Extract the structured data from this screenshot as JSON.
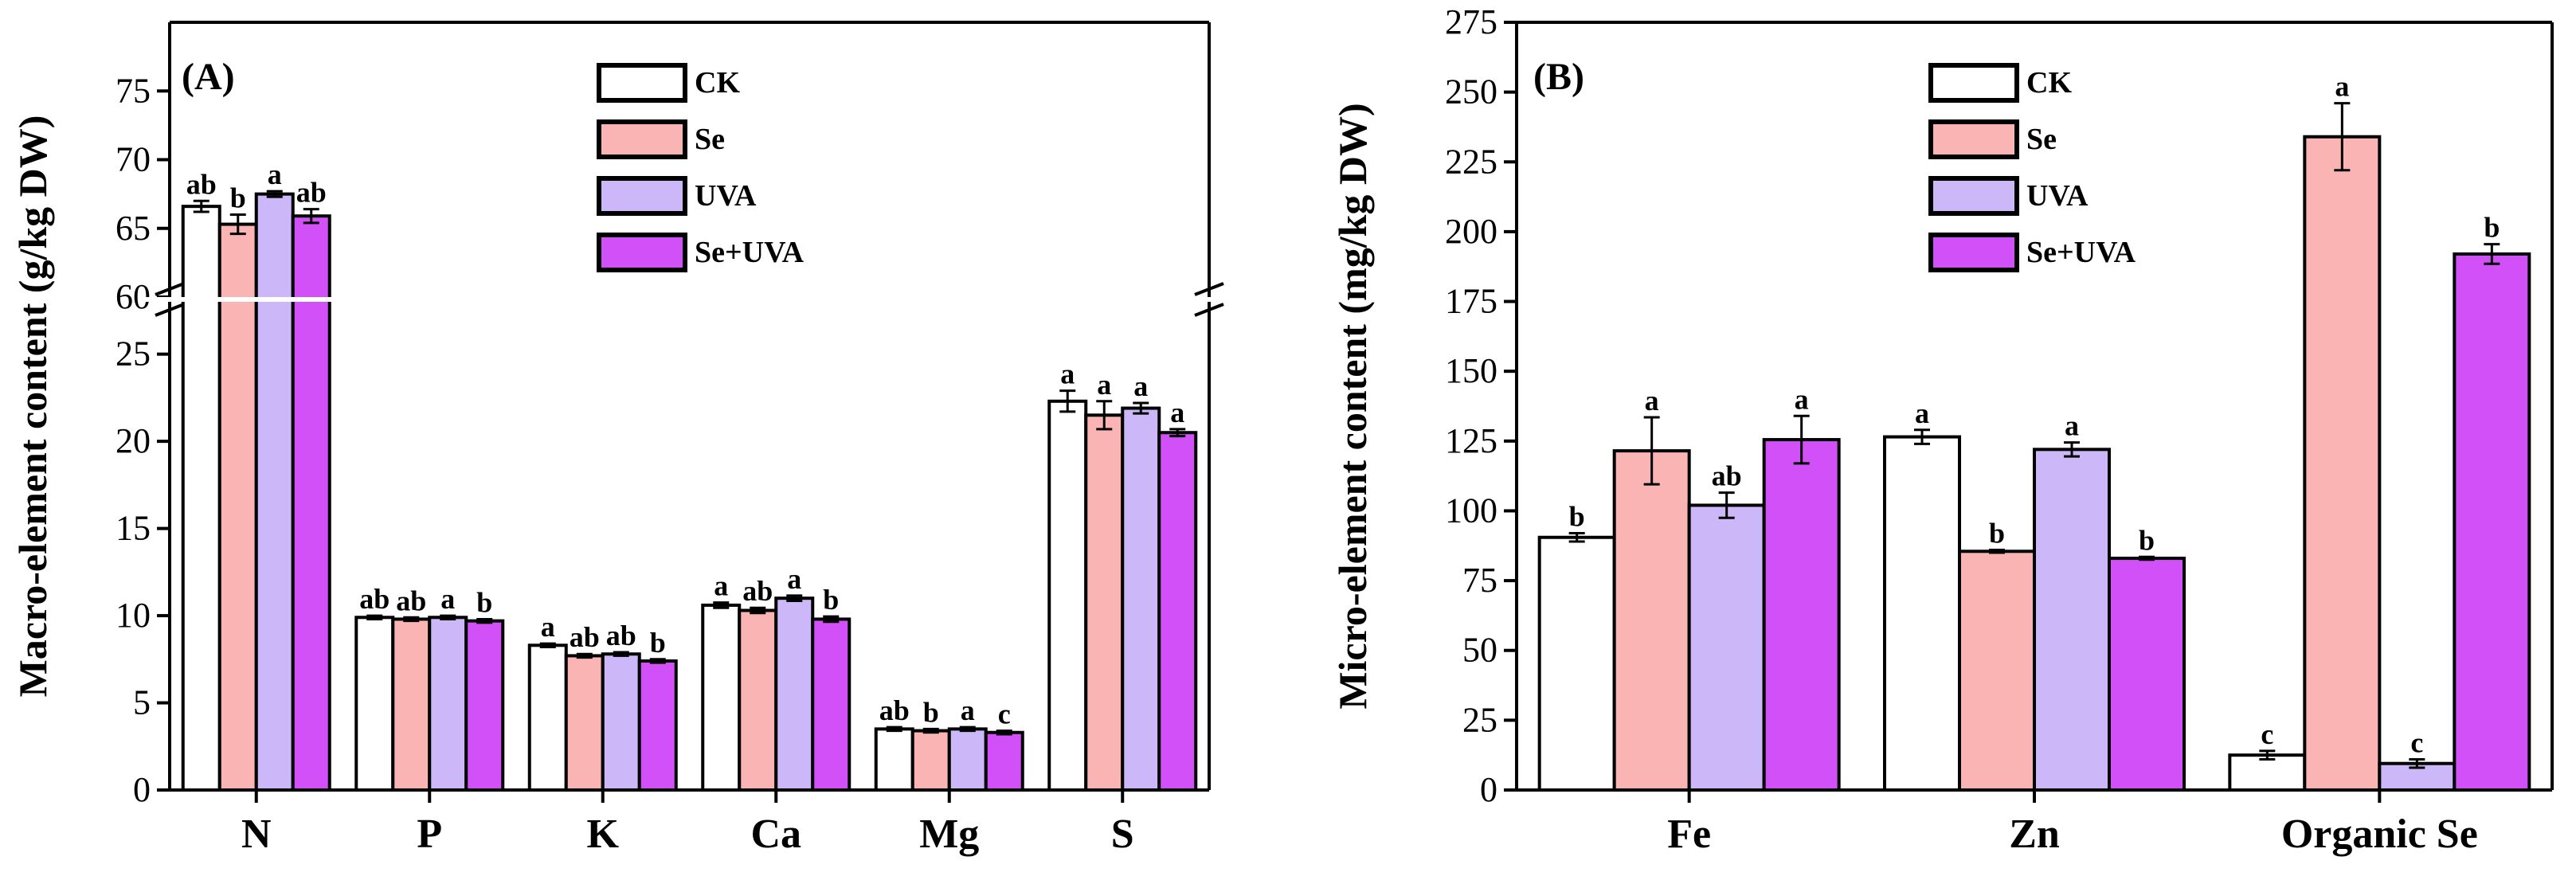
{
  "colors": {
    "CK": "#ffffff",
    "Se": "#fbb4b4",
    "UVA": "#ccb8f8",
    "Se+UVA": "#d250f7"
  },
  "chart_data": [
    {
      "type": "bar",
      "panel_label": "(A)",
      "ylabel": "Macro-element content (g/kg DW)",
      "categories": [
        "N",
        "P",
        "K",
        "Ca",
        "Mg",
        "S"
      ],
      "axis_break": {
        "lower": [
          0,
          28
        ],
        "upper": [
          60,
          80
        ]
      },
      "yticks_lower": [
        0,
        5,
        10,
        15,
        20,
        25
      ],
      "yticks_upper": [
        60,
        65,
        70,
        75
      ],
      "legend_position": "top-center",
      "series": [
        {
          "name": "CK",
          "values": [
            66.6,
            9.9,
            8.3,
            10.6,
            3.5,
            22.3
          ],
          "errors": [
            0.4,
            0.1,
            0.1,
            0.15,
            0.1,
            0.6
          ],
          "letters": [
            "ab",
            "ab",
            "a",
            "a",
            "ab",
            "a"
          ]
        },
        {
          "name": "Se",
          "values": [
            65.3,
            9.8,
            7.7,
            10.3,
            3.4,
            21.5
          ],
          "errors": [
            0.7,
            0.1,
            0.1,
            0.15,
            0.1,
            0.8
          ],
          "letters": [
            "b",
            "ab",
            "ab",
            "ab",
            "b",
            "a"
          ]
        },
        {
          "name": "UVA",
          "values": [
            67.5,
            9.9,
            7.8,
            11.0,
            3.5,
            21.9
          ],
          "errors": [
            0.2,
            0.1,
            0.1,
            0.15,
            0.1,
            0.3
          ],
          "letters": [
            "a",
            "a",
            "ab",
            "a",
            "a",
            "a"
          ]
        },
        {
          "name": "Se+UVA",
          "values": [
            65.9,
            9.7,
            7.4,
            9.8,
            3.3,
            20.5
          ],
          "errors": [
            0.5,
            0.1,
            0.1,
            0.15,
            0.1,
            0.2
          ],
          "letters": [
            "ab",
            "b",
            "b",
            "b",
            "c",
            "a"
          ]
        }
      ]
    },
    {
      "type": "bar",
      "panel_label": "(B)",
      "ylabel": "Micro-element content (mg/kg DW)",
      "categories": [
        "Fe",
        "Zn",
        "Organic Se"
      ],
      "ylim": [
        0,
        275
      ],
      "yticks": [
        0,
        25,
        50,
        75,
        100,
        125,
        150,
        175,
        200,
        225,
        250,
        275
      ],
      "legend_position": "top-center",
      "series": [
        {
          "name": "CK",
          "values": [
            90.5,
            126.5,
            12.5
          ],
          "errors": [
            1.5,
            2.5,
            1.5
          ],
          "letters": [
            "b",
            "a",
            "c"
          ]
        },
        {
          "name": "Se",
          "values": [
            121.5,
            85.5,
            234
          ],
          "errors": [
            12,
            0.5,
            12
          ],
          "letters": [
            "a",
            "b",
            "a"
          ]
        },
        {
          "name": "UVA",
          "values": [
            102,
            122,
            9.5
          ],
          "errors": [
            4.5,
            2.5,
            1.5
          ],
          "letters": [
            "ab",
            "a",
            "c"
          ]
        },
        {
          "name": "Se+UVA",
          "values": [
            125.5,
            83,
            192
          ],
          "errors": [
            8.5,
            0.5,
            3.5
          ],
          "letters": [
            "a",
            "b",
            "b"
          ]
        }
      ]
    }
  ]
}
